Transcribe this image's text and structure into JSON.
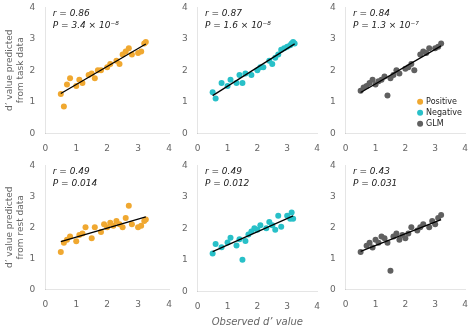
{
  "chart_data": [
    {
      "type": "scatter",
      "ylabel": "d’ value predicted\nfrom task data",
      "xlim": [
        0,
        4
      ],
      "ylim": [
        0,
        4
      ],
      "xticks": [
        0,
        1,
        2,
        3,
        4
      ],
      "yticks": [
        0,
        1,
        2,
        3,
        4
      ],
      "grid": false,
      "annotations": [
        "r = 0.86",
        "P = 3.4 × 10⁻⁸"
      ],
      "series": [
        {
          "color": "#F0A830",
          "marker": "o",
          "x": [
            0.5,
            0.6,
            0.7,
            0.8,
            1.0,
            1.1,
            1.2,
            1.4,
            1.5,
            1.6,
            1.7,
            1.8,
            2.0,
            2.1,
            2.3,
            2.4,
            2.5,
            2.6,
            2.7,
            2.8,
            3.0,
            3.1,
            3.2,
            3.25
          ],
          "values": [
            1.25,
            0.85,
            1.55,
            1.75,
            1.5,
            1.7,
            1.6,
            1.85,
            1.9,
            1.75,
            2.0,
            2.0,
            2.1,
            2.2,
            2.3,
            2.2,
            2.5,
            2.6,
            2.7,
            2.5,
            2.55,
            2.6,
            2.85,
            2.9
          ]
        },
        {
          "type": "line",
          "color": "#000000",
          "line_style": "solid",
          "x": [
            0.5,
            3.25
          ],
          "values": [
            1.263,
            2.838
          ]
        }
      ]
    },
    {
      "type": "scatter",
      "xlim": [
        0,
        4
      ],
      "ylim": [
        0,
        4
      ],
      "xticks": [
        0,
        1,
        2,
        3,
        4
      ],
      "yticks": [
        0,
        1,
        2,
        3,
        4
      ],
      "grid": false,
      "annotations": [
        "r = 0.87",
        "P = 1.6 × 10⁻⁸"
      ],
      "series": [
        {
          "color": "#28C0C8",
          "marker": "o",
          "x": [
            0.5,
            0.6,
            0.8,
            1.0,
            1.1,
            1.3,
            1.4,
            1.5,
            1.6,
            1.8,
            2.0,
            2.1,
            2.2,
            2.4,
            2.5,
            2.6,
            2.7,
            2.8,
            2.9,
            3.0,
            3.1,
            3.15,
            3.2,
            3.25
          ],
          "values": [
            1.3,
            1.1,
            1.6,
            1.5,
            1.7,
            1.6,
            1.85,
            1.6,
            1.9,
            1.85,
            2.0,
            2.1,
            2.1,
            2.3,
            2.2,
            2.4,
            2.5,
            2.65,
            2.7,
            2.75,
            2.8,
            2.85,
            2.9,
            2.85
          ]
        },
        {
          "type": "line",
          "color": "#000000",
          "line_style": "solid",
          "x": [
            0.5,
            3.25
          ],
          "values": [
            1.194,
            2.84
          ]
        }
      ]
    },
    {
      "type": "scatter",
      "xlim": [
        0,
        4
      ],
      "ylim": [
        0,
        4
      ],
      "xticks": [
        0,
        1,
        2,
        3,
        4
      ],
      "yticks": [
        0,
        1,
        2,
        3,
        4
      ],
      "grid": false,
      "legend": "lower right",
      "annotations": [
        "r = 0.84",
        "P = 1.3 × 10⁻⁷"
      ],
      "series": [
        {
          "name": "Positive",
          "color": "#F0A830",
          "marker": "o",
          "x": [],
          "values": []
        },
        {
          "name": "Negative",
          "color": "#28C0C8",
          "marker": "o",
          "x": [],
          "values": []
        },
        {
          "name": "GLM",
          "color": "#606060",
          "marker": "o",
          "x": [
            0.5,
            0.6,
            0.7,
            0.8,
            0.9,
            1.0,
            1.1,
            1.2,
            1.3,
            1.4,
            1.5,
            1.6,
            1.7,
            1.8,
            2.0,
            2.1,
            2.2,
            2.3,
            2.5,
            2.6,
            2.7,
            2.8,
            3.0,
            3.1,
            3.2
          ],
          "values": [
            1.35,
            1.45,
            1.5,
            1.6,
            1.7,
            1.55,
            1.65,
            1.7,
            1.8,
            1.2,
            1.75,
            1.85,
            2.0,
            1.9,
            2.05,
            2.1,
            2.2,
            2.0,
            2.5,
            2.6,
            2.55,
            2.7,
            2.7,
            2.75,
            2.85
          ]
        },
        {
          "type": "line",
          "color": "#000000",
          "line_style": "solid",
          "x": [
            0.5,
            3.2
          ],
          "values": [
            1.296,
            2.776
          ]
        }
      ]
    },
    {
      "type": "scatter",
      "ylabel": "d’ value predicted\nfrom rest data",
      "xlim": [
        0,
        4
      ],
      "ylim": [
        0,
        4
      ],
      "xticks": [
        0,
        1,
        2,
        3,
        4
      ],
      "yticks": [
        0,
        1,
        2,
        3,
        4
      ],
      "grid": false,
      "annotations": [
        "r = 0.49",
        "P = 0.014"
      ],
      "series": [
        {
          "color": "#F0A830",
          "marker": "o",
          "x": [
            0.5,
            0.6,
            0.7,
            0.8,
            1.0,
            1.1,
            1.2,
            1.3,
            1.5,
            1.6,
            1.8,
            1.9,
            2.0,
            2.1,
            2.2,
            2.3,
            2.4,
            2.5,
            2.6,
            2.7,
            2.8,
            3.0,
            3.1,
            3.2,
            3.25
          ],
          "values": [
            1.2,
            1.5,
            1.6,
            1.7,
            1.55,
            1.75,
            1.8,
            2.0,
            1.65,
            2.0,
            1.85,
            2.1,
            2.0,
            2.15,
            2.05,
            2.2,
            2.1,
            2.0,
            2.3,
            2.7,
            2.1,
            2.0,
            2.05,
            2.2,
            2.25
          ]
        },
        {
          "type": "line",
          "color": "#000000",
          "line_style": "solid",
          "x": [
            0.5,
            3.25
          ],
          "values": [
            1.536,
            2.338
          ]
        }
      ]
    },
    {
      "type": "scatter",
      "xlabel": "Observed d’ value",
      "xlim": [
        0,
        4
      ],
      "ylim": [
        0,
        4
      ],
      "xticks": [
        0,
        1,
        2,
        3,
        4
      ],
      "yticks": [
        0,
        1,
        2,
        3,
        4
      ],
      "grid": false,
      "annotations": [
        "r = 0.49",
        "P = 0.012"
      ],
      "series": [
        {
          "color": "#28C0C8",
          "marker": "o",
          "x": [
            0.5,
            0.6,
            0.8,
            1.0,
            1.1,
            1.3,
            1.4,
            1.5,
            1.6,
            1.7,
            1.8,
            1.9,
            2.0,
            2.1,
            2.3,
            2.4,
            2.5,
            2.6,
            2.7,
            2.8,
            3.0,
            3.1,
            3.15,
            3.2
          ],
          "values": [
            1.2,
            1.5,
            1.4,
            1.55,
            1.7,
            1.45,
            1.65,
            1.0,
            1.6,
            1.8,
            1.9,
            2.0,
            1.95,
            2.1,
            2.0,
            2.2,
            2.1,
            1.95,
            2.4,
            2.05,
            2.4,
            2.3,
            2.5,
            2.3
          ]
        },
        {
          "type": "line",
          "color": "#000000",
          "line_style": "solid",
          "x": [
            0.5,
            3.2
          ],
          "values": [
            1.26,
            2.397
          ]
        }
      ]
    },
    {
      "type": "scatter",
      "xlim": [
        0,
        4
      ],
      "ylim": [
        0,
        4
      ],
      "xticks": [
        0,
        1,
        2,
        3,
        4
      ],
      "yticks": [
        0,
        1,
        2,
        3,
        4
      ],
      "grid": false,
      "annotations": [
        "r = 0.43",
        "P = 0.031"
      ],
      "series": [
        {
          "color": "#606060",
          "marker": "o",
          "x": [
            0.5,
            0.7,
            0.8,
            0.9,
            1.0,
            1.1,
            1.2,
            1.3,
            1.4,
            1.5,
            1.6,
            1.7,
            1.8,
            1.9,
            2.0,
            2.1,
            2.2,
            2.4,
            2.5,
            2.6,
            2.8,
            2.9,
            3.0,
            3.1,
            3.2
          ],
          "values": [
            1.2,
            1.4,
            1.5,
            1.35,
            1.6,
            1.5,
            1.7,
            1.65,
            1.5,
            0.6,
            1.7,
            1.8,
            1.6,
            1.75,
            1.65,
            1.8,
            2.0,
            1.9,
            2.0,
            2.1,
            2.0,
            2.2,
            2.1,
            2.3,
            2.4
          ]
        },
        {
          "type": "line",
          "color": "#000000",
          "line_style": "solid",
          "x": [
            0.5,
            3.2
          ],
          "values": [
            1.221,
            2.245
          ]
        }
      ]
    }
  ]
}
